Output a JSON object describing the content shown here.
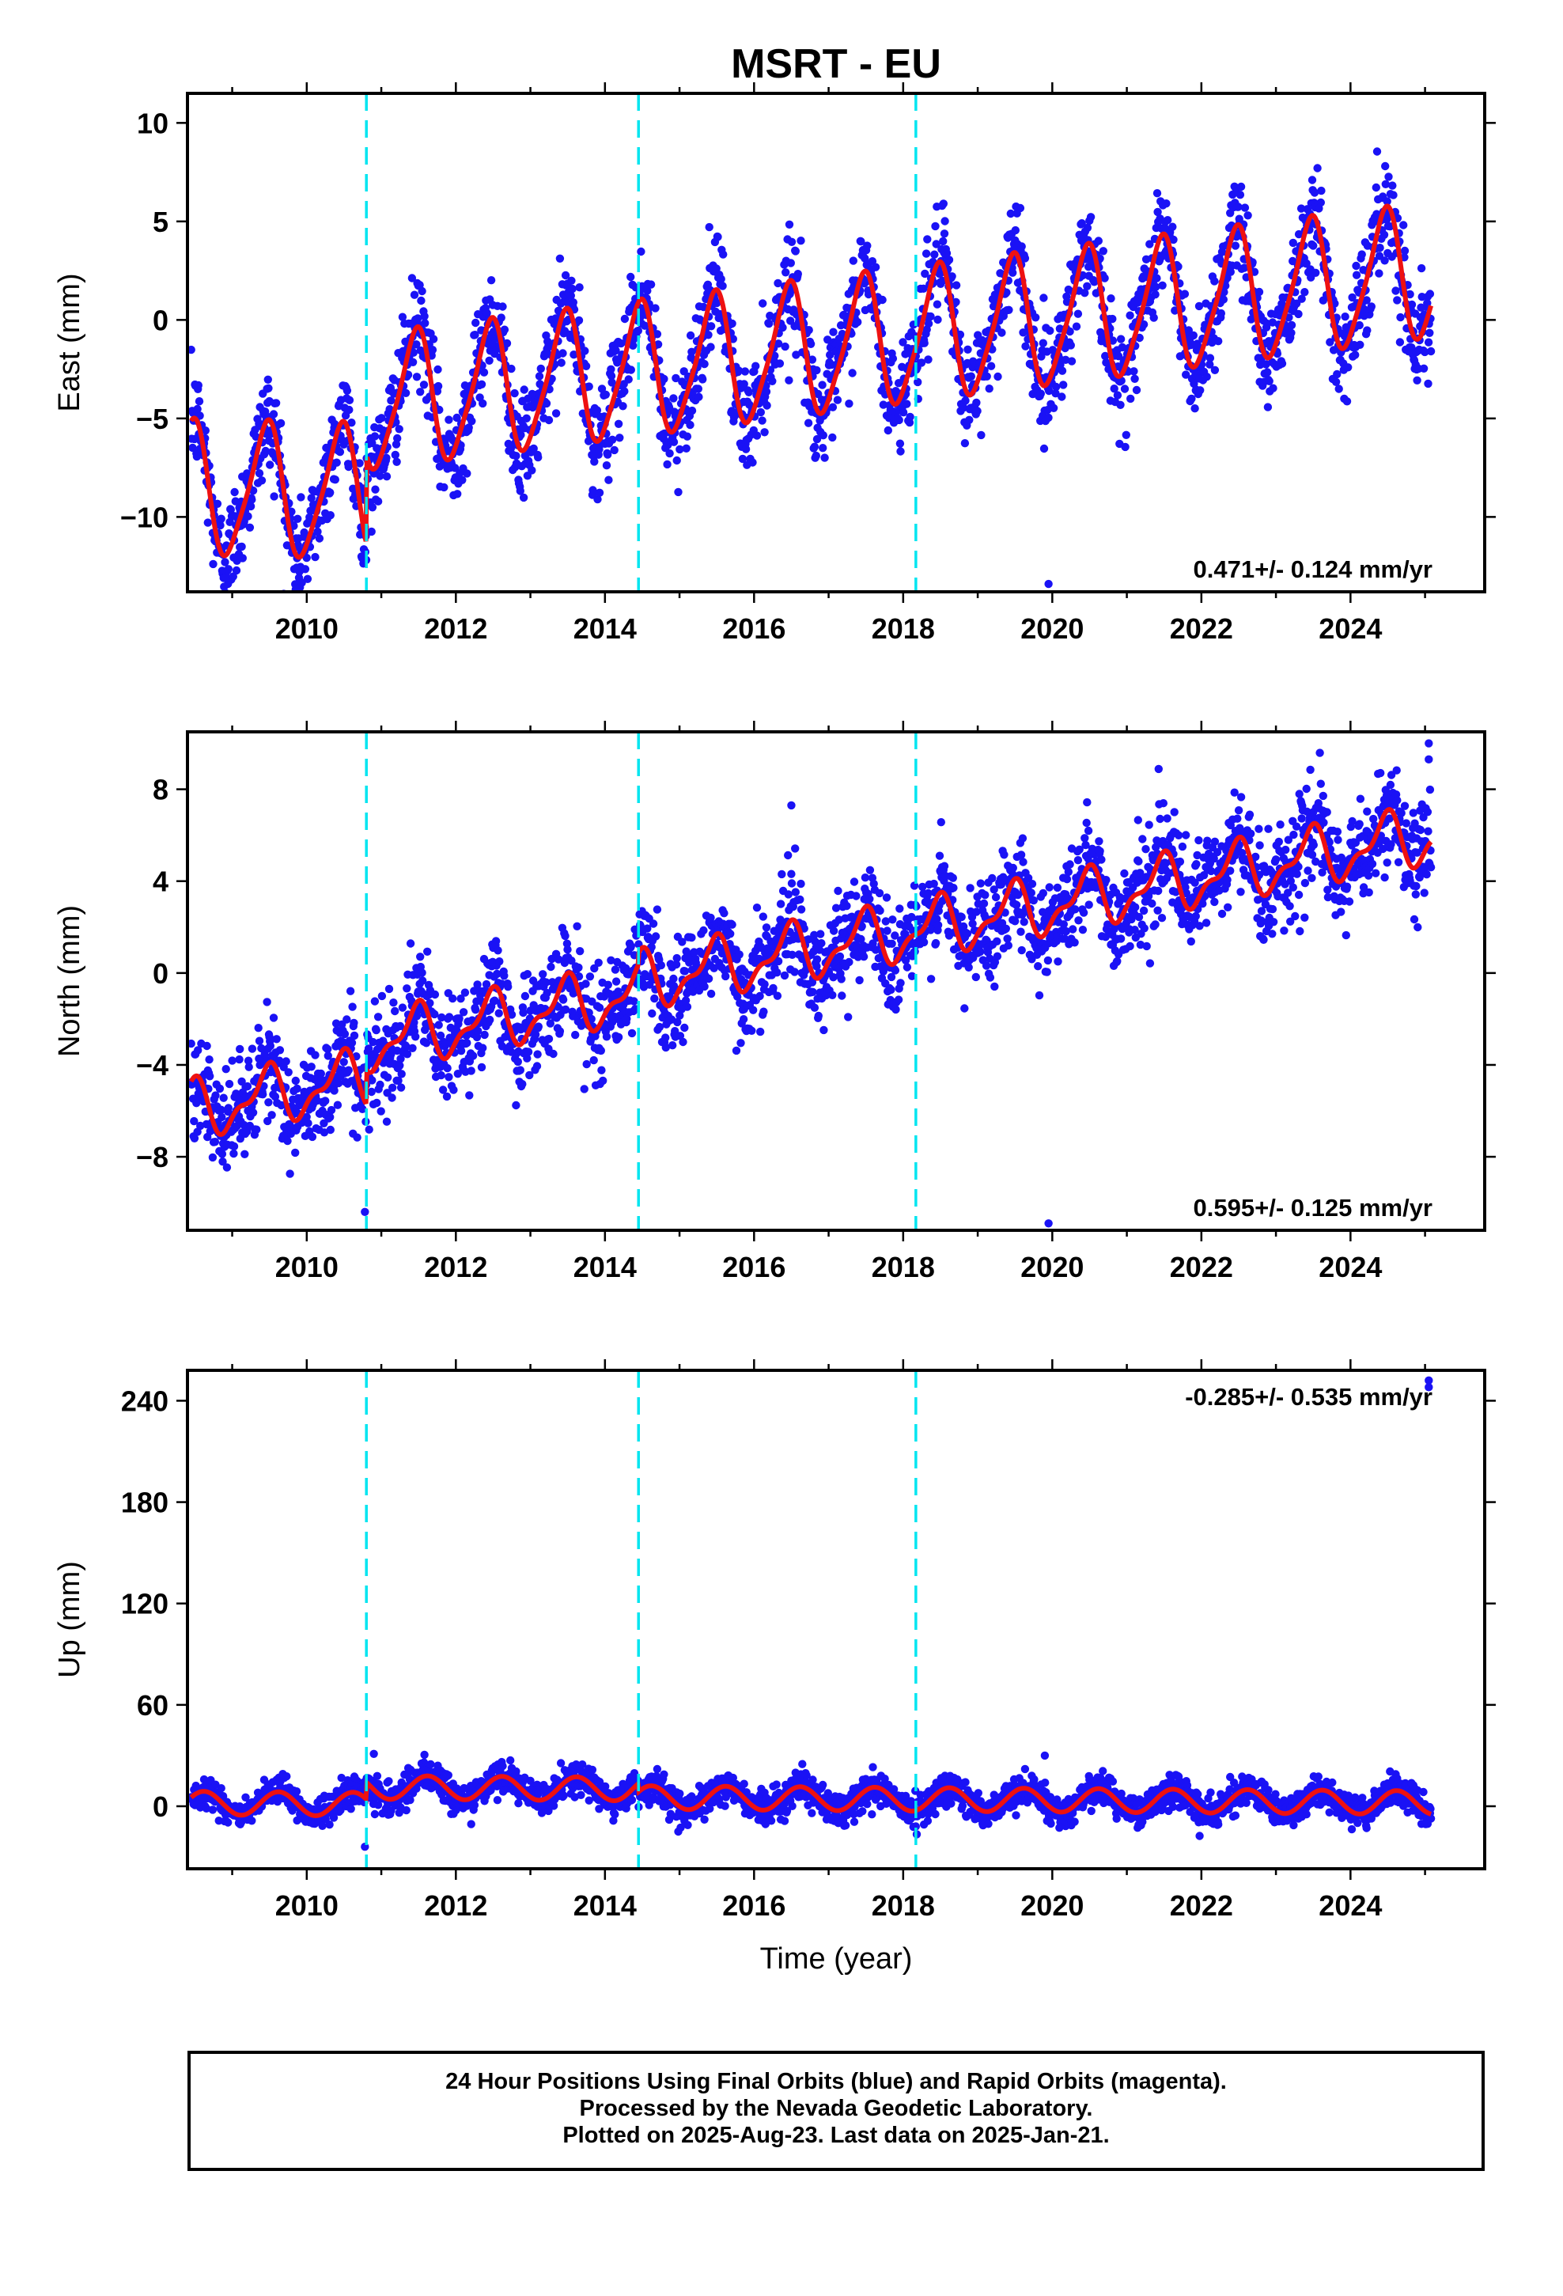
{
  "title": "MSRT - EU",
  "colors": {
    "points": "#1a12f5",
    "model": "#ee1111",
    "breaks": "#00e5f0",
    "axes": "#000000"
  },
  "chart_data": [
    {
      "type": "scatter",
      "component": "East",
      "ylabel": "East (mm)",
      "xlabel": "",
      "xlim": [
        2008.4,
        2025.8
      ],
      "ylim": [
        -13.8,
        11.5
      ],
      "yticks": [
        -10,
        -5,
        0,
        5,
        10
      ],
      "yticklabels": [
        "−10",
        "−5",
        "0",
        "5",
        "10"
      ],
      "xticks": [
        2010,
        2012,
        2014,
        2016,
        2018,
        2020,
        2022,
        2024
      ],
      "xticklabels": [
        "2010",
        "2012",
        "2014",
        "2016",
        "2018",
        "2020",
        "2022",
        "2024"
      ],
      "rate_label": "0.471+/- 0.124 mm/yr",
      "rate_label_position": "bottom-right",
      "break_epochs": [
        2010.8,
        2014.45,
        2018.17
      ],
      "model": {
        "t0": 2008.45,
        "t1": 2025.08,
        "t_ref": 2016.75,
        "rate": 0.471,
        "offset": -1.5,
        "annual_amp": 3.3,
        "annual_peak_phase": 0.45,
        "semiannual_amp": 0.6,
        "semiannual_peak_phase": 0.05,
        "steps": [
          {
            "epoch": 2010.8,
            "size": 0.0
          },
          {
            "epoch": 2014.45,
            "size": 0.0
          },
          {
            "epoch": 2018.17,
            "size": 0.0
          }
        ],
        "extra_trend": {
          "start": 2008.45,
          "early_drop": -3.5,
          "drop_end": 2010.8
        }
      },
      "scatter_sigma": 1.3,
      "outliers": [
        [
          2019.95,
          -13.4
        ]
      ]
    },
    {
      "type": "scatter",
      "component": "North",
      "ylabel": "North (mm)",
      "xlabel": "",
      "xlim": [
        2008.4,
        2025.8
      ],
      "ylim": [
        -11.2,
        10.5
      ],
      "yticks": [
        -8,
        -4,
        0,
        4,
        8
      ],
      "yticklabels": [
        "−8",
        "−4",
        "0",
        "4",
        "8"
      ],
      "xticks": [
        2010,
        2012,
        2014,
        2016,
        2018,
        2020,
        2022,
        2024
      ],
      "xticklabels": [
        "2010",
        "2012",
        "2014",
        "2016",
        "2018",
        "2020",
        "2022",
        "2024"
      ],
      "rate_label": "0.595+/- 0.125 mm/yr",
      "rate_label_position": "bottom-right",
      "break_epochs": [
        2010.8,
        2014.45,
        2018.17
      ],
      "model": {
        "t0": 2008.45,
        "t1": 2025.08,
        "t_ref": 2016.75,
        "rate": 0.6,
        "offset": 0.0,
        "annual_amp": 1.1,
        "annual_peak_phase": 0.45,
        "semiannual_amp": 0.5,
        "semiannual_peak_phase": 0.05,
        "steps": [
          {
            "epoch": 2010.8,
            "size": 1.5
          },
          {
            "epoch": 2014.45,
            "size": 0.5
          },
          {
            "epoch": 2018.17,
            "size": 0.0
          }
        ]
      },
      "scatter_sigma": 1.1,
      "outliers": [
        [
          2010.78,
          -10.4
        ],
        [
          2019.95,
          -10.9
        ],
        [
          2025.05,
          10.0
        ],
        [
          2025.05,
          9.3
        ],
        [
          2016.5,
          7.3
        ]
      ]
    },
    {
      "type": "scatter",
      "component": "Up",
      "ylabel": "Up (mm)",
      "xlabel": "Time (year)",
      "xlim": [
        2008.4,
        2025.8
      ],
      "ylim": [
        -37,
        258
      ],
      "yticks": [
        0,
        60,
        120,
        180,
        240
      ],
      "yticklabels": [
        "0",
        "60",
        "120",
        "180",
        "240"
      ],
      "xticks": [
        2010,
        2012,
        2014,
        2016,
        2018,
        2020,
        2022,
        2024
      ],
      "xticklabels": [
        "2010",
        "2012",
        "2014",
        "2016",
        "2018",
        "2020",
        "2022",
        "2024"
      ],
      "rate_label": "-0.285+/- 0.535 mm/yr",
      "rate_label_position": "top-right",
      "break_epochs": [
        2010.8,
        2014.45,
        2018.17
      ],
      "model": {
        "t0": 2008.45,
        "t1": 2025.08,
        "t_ref": 2016.75,
        "rate": -0.285,
        "offset": 2.0,
        "annual_amp": 7.0,
        "annual_peak_phase": 0.62,
        "semiannual_amp": 0.0,
        "semiannual_peak_phase": 0.0,
        "steps": [
          {
            "epoch": 2010.8,
            "size": 10.0
          },
          {
            "epoch": 2014.45,
            "size": -5.0
          },
          {
            "epoch": 2018.17,
            "size": 0.0
          }
        ]
      },
      "scatter_sigma": 4.5,
      "outliers": [
        [
          2010.78,
          -24.0
        ],
        [
          2010.9,
          31.0
        ],
        [
          2019.9,
          30.0
        ],
        [
          2025.05,
          248.0
        ],
        [
          2025.05,
          252.0
        ]
      ]
    }
  ],
  "footer": {
    "line1": "24 Hour Positions Using Final Orbits (blue) and Rapid Orbits (magenta).",
    "line2": "Processed by the Nevada Geodetic Laboratory.",
    "line3": "Plotted on 2025-Aug-23. Last data on 2025-Jan-21."
  }
}
